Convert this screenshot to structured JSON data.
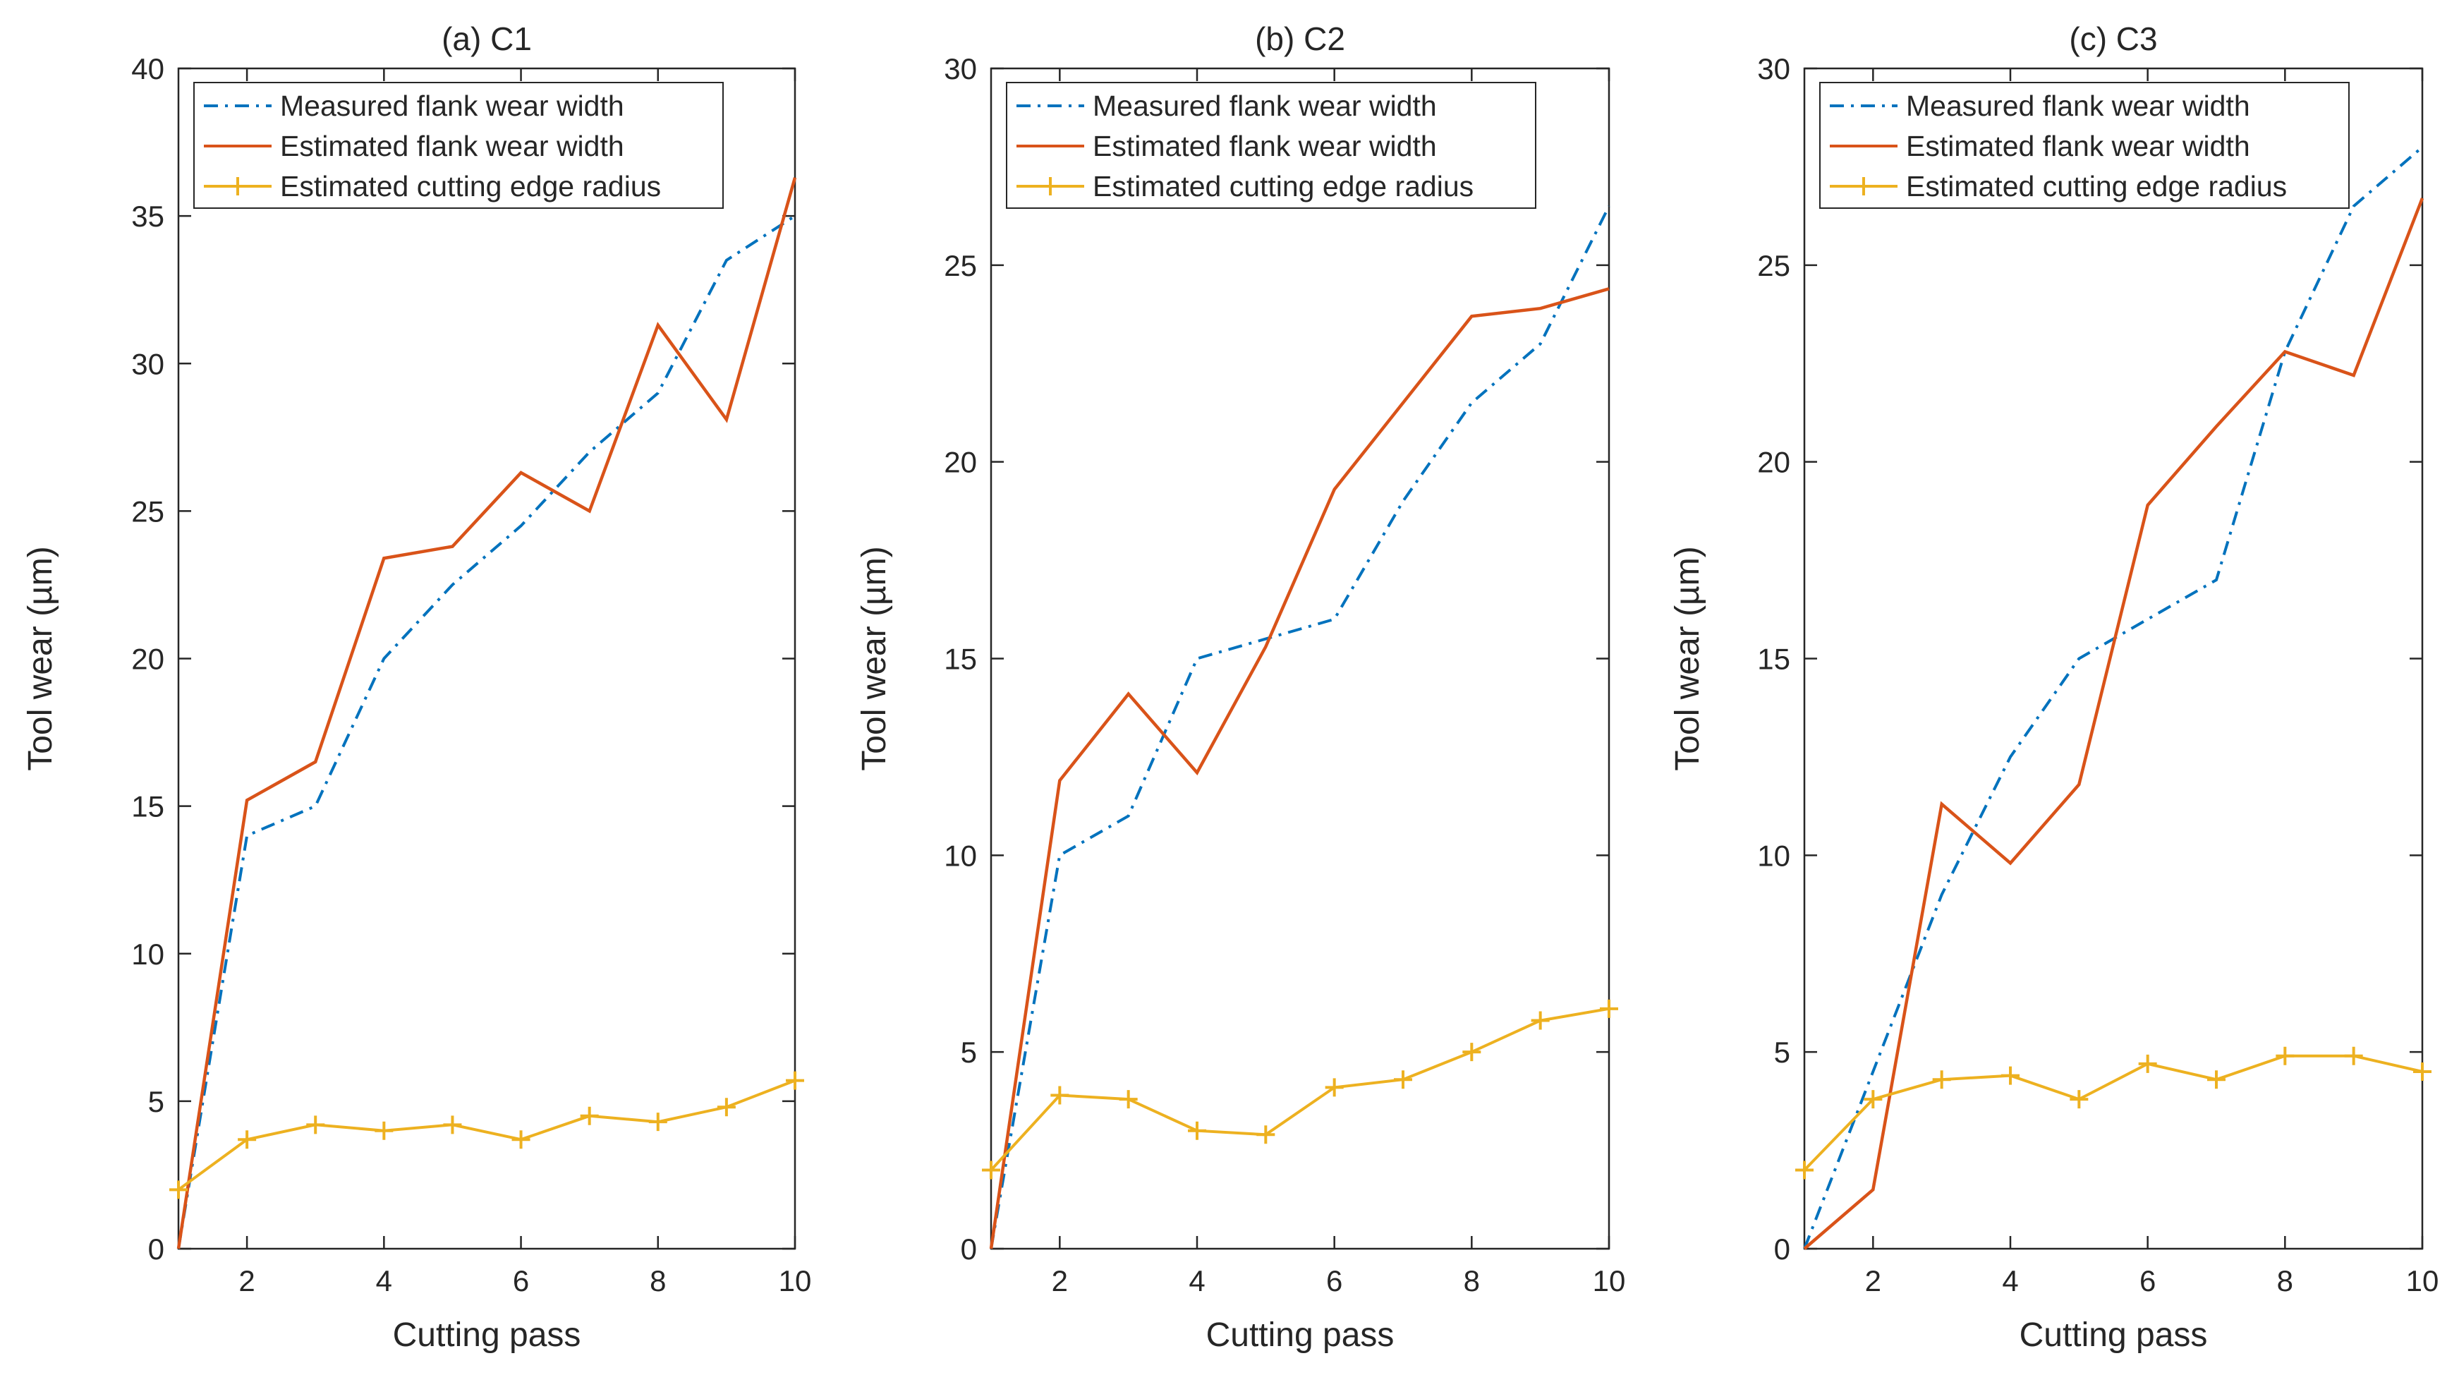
{
  "colors": {
    "measured": "#0072BD",
    "estimated": "#D95319",
    "radius": "#EDB120",
    "axis": "#262626",
    "background": "#ffffff"
  },
  "legend_entries": [
    "Measured flank wear width",
    "Estimated flank wear width",
    "Estimated cutting edge radius"
  ],
  "chart_data": [
    {
      "type": "line",
      "title": "(a) C1",
      "xlabel": "Cutting pass",
      "ylabel": "Tool wear (µm)",
      "xlim": [
        1,
        10
      ],
      "ylim": [
        0,
        40
      ],
      "xticks": [
        2,
        4,
        6,
        8,
        10
      ],
      "yticks": [
        0,
        5,
        10,
        15,
        20,
        25,
        30,
        35,
        40
      ],
      "legend_position": "top-left",
      "x": [
        1,
        2,
        3,
        4,
        5,
        6,
        7,
        8,
        9,
        10
      ],
      "series": [
        {
          "name": "Measured flank wear width",
          "style": "dash-dot",
          "values": [
            0,
            14,
            15,
            20,
            22.5,
            24.5,
            27,
            29,
            33.5,
            35
          ]
        },
        {
          "name": "Estimated flank wear width",
          "style": "solid",
          "values": [
            0,
            15.2,
            16.5,
            23.4,
            23.8,
            26.3,
            25,
            31.3,
            28.1,
            36.3
          ]
        },
        {
          "name": "Estimated cutting edge radius",
          "style": "plus-marker",
          "values": [
            2,
            3.7,
            4.2,
            4,
            4.2,
            3.7,
            4.5,
            4.3,
            4.8,
            5.7
          ]
        }
      ]
    },
    {
      "type": "line",
      "title": "(b) C2",
      "xlabel": "Cutting pass",
      "ylabel": "Tool wear (µm)",
      "xlim": [
        1,
        10
      ],
      "ylim": [
        0,
        30
      ],
      "xticks": [
        2,
        4,
        6,
        8,
        10
      ],
      "yticks": [
        0,
        5,
        10,
        15,
        20,
        25,
        30
      ],
      "legend_position": "top-left",
      "x": [
        1,
        2,
        3,
        4,
        5,
        6,
        7,
        8,
        9,
        10
      ],
      "series": [
        {
          "name": "Measured flank wear width",
          "style": "dash-dot",
          "values": [
            0,
            10,
            11,
            15,
            15.5,
            16,
            19,
            21.5,
            23,
            26.5
          ]
        },
        {
          "name": "Estimated flank wear width",
          "style": "solid",
          "values": [
            0,
            11.9,
            14.1,
            12.1,
            15.3,
            19.3,
            21.5,
            23.7,
            23.9,
            24.4
          ]
        },
        {
          "name": "Estimated cutting edge radius",
          "style": "plus-marker",
          "values": [
            2,
            3.9,
            3.8,
            3,
            2.9,
            4.1,
            4.3,
            5,
            5.8,
            6.1
          ]
        }
      ]
    },
    {
      "type": "line",
      "title": "(c) C3",
      "xlabel": "Cutting pass",
      "ylabel": "Tool wear (µm)",
      "xlim": [
        1,
        10
      ],
      "ylim": [
        0,
        30
      ],
      "xticks": [
        2,
        4,
        6,
        8,
        10
      ],
      "yticks": [
        0,
        5,
        10,
        15,
        20,
        25,
        30
      ],
      "legend_position": "top-left",
      "x": [
        1,
        2,
        3,
        4,
        5,
        6,
        7,
        8,
        9,
        10
      ],
      "series": [
        {
          "name": "Measured flank wear width",
          "style": "dash-dot",
          "values": [
            0,
            4.5,
            9,
            12.5,
            15,
            16,
            17,
            22.8,
            26.5,
            28
          ]
        },
        {
          "name": "Estimated flank wear width",
          "style": "solid",
          "values": [
            0,
            1.5,
            11.3,
            9.8,
            11.8,
            18.9,
            20.9,
            22.8,
            22.2,
            26.7
          ]
        },
        {
          "name": "Estimated cutting edge radius",
          "style": "plus-marker",
          "values": [
            2,
            3.8,
            4.3,
            4.4,
            3.8,
            4.7,
            4.3,
            4.9,
            4.9,
            4.5
          ]
        }
      ]
    }
  ]
}
